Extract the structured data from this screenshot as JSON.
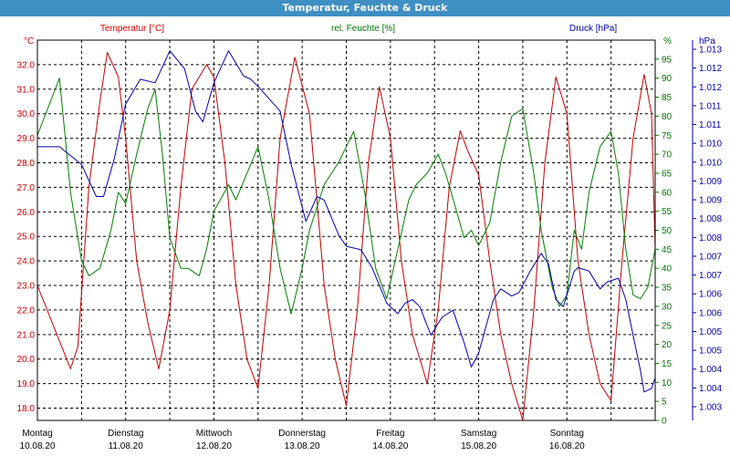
{
  "window": {
    "title": "Temperatur, Feuchte & Druck"
  },
  "colors": {
    "temperature": "#c00000",
    "humidity": "#008000",
    "pressure": "#0000b0",
    "titlebar": "#3f8fc3"
  },
  "chart_data": {
    "type": "line",
    "title": "Temperatur, Feuchte & Druck",
    "grid": true,
    "legend": "top",
    "x_ticks": [
      {
        "day": "Montag",
        "date": "10.08.20"
      },
      {
        "day": "Dienstag",
        "date": "11.08.20"
      },
      {
        "day": "Mittwoch",
        "date": "12.08.20"
      },
      {
        "day": "Donnerstag",
        "date": "13.08.20"
      },
      {
        "day": "Freitag",
        "date": "14.08.20"
      },
      {
        "day": "Samstag",
        "date": "15.08.20"
      },
      {
        "day": "Sonntag",
        "date": "16.08.20"
      }
    ],
    "xlim": [
      "10.08.20 00:00",
      "17.08.20 00:00"
    ],
    "axes": {
      "temperature": {
        "label": "Temperatur [°C]",
        "unit": "°C",
        "ylim": [
          17.5,
          33.0
        ],
        "ticks": [
          "18.0",
          "19.0",
          "20.0",
          "21.0",
          "22.0",
          "23.0",
          "24.0",
          "25.0",
          "26.0",
          "27.0",
          "28.0",
          "29.0",
          "30.0",
          "31.0",
          "32.0"
        ]
      },
      "humidity": {
        "label": "rel. Feuchte [%]",
        "unit": "%",
        "ylim": [
          0,
          100
        ],
        "ticks": [
          "0",
          "5",
          "10",
          "15",
          "20",
          "25",
          "30",
          "35",
          "40",
          "45",
          "50",
          "55",
          "60",
          "65",
          "70",
          "75",
          "80",
          "85",
          "90",
          "95"
        ]
      },
      "pressure": {
        "label": "Druck [hPa]",
        "unit": "hPa",
        "ylim": [
          1002.6,
          1013.3
        ],
        "ticks": [
          "1.003",
          "1.004",
          "1.004",
          "1.005",
          "1.005",
          "1.006",
          "1.006",
          "1.007",
          "1.007",
          "1.008",
          "1.008",
          "1.009",
          "1.009",
          "1.010",
          "1.010",
          "1.011",
          "1.011",
          "1.012",
          "1.012",
          "1.013"
        ]
      }
    },
    "series": [
      {
        "name": "Temperatur [°C]",
        "axis": "temperature",
        "points": [
          [
            "10.08.20 00:00",
            23.0
          ],
          [
            "10.08.20 09:00",
            19.6
          ],
          [
            "10.08.20 11:00",
            20.5
          ],
          [
            "10.08.20 14:00",
            27.0
          ],
          [
            "10.08.20 17:00",
            30.5
          ],
          [
            "10.08.20 19:00",
            32.5
          ],
          [
            "10.08.20 22:00",
            31.5
          ],
          [
            "11.08.20 00:00",
            29.0
          ],
          [
            "11.08.20 03:00",
            24.0
          ],
          [
            "11.08.20 06:00",
            21.5
          ],
          [
            "11.08.20 09:00",
            19.6
          ],
          [
            "11.08.20 12:00",
            22.0
          ],
          [
            "11.08.20 15:00",
            27.0
          ],
          [
            "11.08.20 18:00",
            31.0
          ],
          [
            "11.08.20 22:00",
            32.0
          ],
          [
            "12.08.20 00:00",
            31.5
          ],
          [
            "12.08.20 03:00",
            28.0
          ],
          [
            "12.08.20 06:00",
            23.0
          ],
          [
            "12.08.20 09:00",
            20.0
          ],
          [
            "12.08.20 12:00",
            18.8
          ],
          [
            "12.08.20 15:00",
            23.0
          ],
          [
            "12.08.20 18:00",
            29.0
          ],
          [
            "12.08.20 22:00",
            32.3
          ],
          [
            "13.08.20 02:00",
            30.0
          ],
          [
            "13.08.20 06:00",
            23.0
          ],
          [
            "13.08.20 09:00",
            20.0
          ],
          [
            "13.08.20 12:00",
            18.1
          ],
          [
            "13.08.20 15:00",
            22.0
          ],
          [
            "13.08.20 18:00",
            28.0
          ],
          [
            "13.08.20 21:00",
            31.1
          ],
          [
            "14.08.20 00:00",
            29.0
          ],
          [
            "14.08.20 03:00",
            24.0
          ],
          [
            "14.08.20 06:00",
            21.0
          ],
          [
            "14.08.20 10:00",
            19.0
          ],
          [
            "14.08.20 13:00",
            22.0
          ],
          [
            "14.08.20 16:00",
            27.0
          ],
          [
            "14.08.20 19:00",
            29.3
          ],
          [
            "14.08.20 21:00",
            28.5
          ],
          [
            "15.08.20 00:00",
            27.5
          ],
          [
            "15.08.20 03:00",
            24.0
          ],
          [
            "15.08.20 06:00",
            21.0
          ],
          [
            "15.08.20 09:00",
            19.0
          ],
          [
            "15.08.20 12:00",
            17.5
          ],
          [
            "15.08.20 15:00",
            22.0
          ],
          [
            "15.08.20 18:00",
            28.0
          ],
          [
            "15.08.20 21:00",
            31.5
          ],
          [
            "16.08.20 00:00",
            30.0
          ],
          [
            "16.08.20 03:00",
            24.0
          ],
          [
            "16.08.20 06:00",
            21.0
          ],
          [
            "16.08.20 09:00",
            19.0
          ],
          [
            "16.08.20 12:00",
            18.3
          ],
          [
            "16.08.20 15:00",
            24.0
          ],
          [
            "16.08.20 18:00",
            29.0
          ],
          [
            "16.08.20 21:00",
            31.6
          ],
          [
            "16.08.20 23:00",
            30.0
          ],
          [
            "17.08.20 00:00",
            24.5
          ]
        ]
      },
      {
        "name": "rel. Feuchte [%]",
        "axis": "humidity",
        "points": [
          [
            "10.08.20 00:00",
            75
          ],
          [
            "10.08.20 06:00",
            90
          ],
          [
            "10.08.20 09:00",
            60
          ],
          [
            "10.08.20 12:00",
            42
          ],
          [
            "10.08.20 14:00",
            38
          ],
          [
            "10.08.20 17:00",
            40
          ],
          [
            "10.08.20 20:00",
            50
          ],
          [
            "10.08.20 22:00",
            60
          ],
          [
            "11.08.20 00:00",
            57
          ],
          [
            "11.08.20 03:00",
            70
          ],
          [
            "11.08.20 06:00",
            82
          ],
          [
            "11.08.20 08:00",
            87
          ],
          [
            "11.08.20 10:00",
            70
          ],
          [
            "11.08.20 12:00",
            48
          ],
          [
            "11.08.20 15:00",
            40
          ],
          [
            "11.08.20 17:00",
            40
          ],
          [
            "11.08.20 20:00",
            38
          ],
          [
            "11.08.20 22:00",
            45
          ],
          [
            "12.08.20 00:00",
            55
          ],
          [
            "12.08.20 04:00",
            62
          ],
          [
            "12.08.20 06:00",
            58
          ],
          [
            "12.08.20 09:00",
            65
          ],
          [
            "12.08.20 12:00",
            72
          ],
          [
            "12.08.20 15:00",
            58
          ],
          [
            "12.08.20 18:00",
            40
          ],
          [
            "12.08.20 21:00",
            28
          ],
          [
            "13.08.20 00:00",
            40
          ],
          [
            "13.08.20 02:00",
            50
          ],
          [
            "13.08.20 06:00",
            62
          ],
          [
            "13.08.20 10:00",
            68
          ],
          [
            "13.08.20 14:00",
            76
          ],
          [
            "13.08.20 17:00",
            60
          ],
          [
            "13.08.20 20:00",
            40
          ],
          [
            "13.08.20 23:00",
            32
          ],
          [
            "14.08.20 02:00",
            45
          ],
          [
            "14.08.20 05:00",
            58
          ],
          [
            "14.08.20 07:00",
            62
          ],
          [
            "14.08.20 10:00",
            65
          ],
          [
            "14.08.20 13:00",
            70
          ],
          [
            "14.08.20 15:00",
            65
          ],
          [
            "14.08.20 18:00",
            55
          ],
          [
            "14.08.20 20:00",
            48
          ],
          [
            "14.08.20 22:00",
            50
          ],
          [
            "15.08.20 00:00",
            46
          ],
          [
            "15.08.20 03:00",
            52
          ],
          [
            "15.08.20 06:00",
            68
          ],
          [
            "15.08.20 09:00",
            80
          ],
          [
            "15.08.20 12:00",
            82
          ],
          [
            "15.08.20 15:00",
            65
          ],
          [
            "15.08.20 17:00",
            50
          ],
          [
            "15.08.20 20:00",
            35
          ],
          [
            "15.08.20 22:00",
            30
          ],
          [
            "16.08.20 00:00",
            33
          ],
          [
            "16.08.20 02:00",
            50
          ],
          [
            "16.08.20 04:00",
            45
          ],
          [
            "16.08.20 06:00",
            60
          ],
          [
            "16.08.20 09:00",
            72
          ],
          [
            "16.08.20 12:00",
            76
          ],
          [
            "16.08.20 14:00",
            65
          ],
          [
            "16.08.20 16:00",
            45
          ],
          [
            "16.08.20 18:00",
            33
          ],
          [
            "16.08.20 20:00",
            32
          ],
          [
            "16.08.20 22:00",
            35
          ],
          [
            "17.08.20 00:00",
            45
          ]
        ]
      },
      {
        "name": "Druck [hPa]",
        "axis": "pressure",
        "points": [
          [
            "10.08.20 00:00",
            1010.3
          ],
          [
            "10.08.20 06:00",
            1010.3
          ],
          [
            "10.08.20 12:00",
            1009.8
          ],
          [
            "10.08.20 16:00",
            1008.9
          ],
          [
            "10.08.20 18:00",
            1008.9
          ],
          [
            "10.08.20 21:00",
            1010.0
          ],
          [
            "11.08.20 00:00",
            1011.5
          ],
          [
            "11.08.20 04:00",
            1012.2
          ],
          [
            "11.08.20 08:00",
            1012.1
          ],
          [
            "11.08.20 12:00",
            1013.0
          ],
          [
            "11.08.20 16:00",
            1012.5
          ],
          [
            "11.08.20 19:00",
            1011.3
          ],
          [
            "11.08.20 21:00",
            1011.0
          ],
          [
            "12.08.20 00:00",
            1012.1
          ],
          [
            "12.08.20 04:00",
            1013.0
          ],
          [
            "12.08.20 08:00",
            1012.3
          ],
          [
            "12.08.20 10:00",
            1012.2
          ],
          [
            "12.08.20 12:00",
            1012.0
          ],
          [
            "12.08.20 18:00",
            1011.3
          ],
          [
            "12.08.20 21:00",
            1009.8
          ],
          [
            "13.08.20 01:00",
            1008.2
          ],
          [
            "13.08.20 04:00",
            1008.9
          ],
          [
            "13.08.20 06:00",
            1008.8
          ],
          [
            "13.08.20 10:00",
            1007.8
          ],
          [
            "13.08.20 12:00",
            1007.5
          ],
          [
            "13.08.20 16:00",
            1007.4
          ],
          [
            "13.08.20 19:00",
            1006.9
          ],
          [
            "13.08.20 23:00",
            1005.9
          ],
          [
            "14.08.20 02:00",
            1005.6
          ],
          [
            "14.08.20 04:00",
            1005.9
          ],
          [
            "14.08.20 06:00",
            1006.0
          ],
          [
            "14.08.20 08:00",
            1005.8
          ],
          [
            "14.08.20 11:00",
            1005.0
          ],
          [
            "14.08.20 14:00",
            1005.5
          ],
          [
            "14.08.20 17:00",
            1005.7
          ],
          [
            "14.08.20 20:00",
            1004.8
          ],
          [
            "14.08.20 22:00",
            1004.1
          ],
          [
            "15.08.20 00:00",
            1004.5
          ],
          [
            "15.08.20 04:00",
            1006.0
          ],
          [
            "15.08.20 06:00",
            1006.3
          ],
          [
            "15.08.20 09:00",
            1006.1
          ],
          [
            "15.08.20 11:00",
            1006.2
          ],
          [
            "15.08.20 14:00",
            1006.8
          ],
          [
            "15.08.20 17:00",
            1007.3
          ],
          [
            "15.08.20 19:00",
            1007.0
          ],
          [
            "15.08.20 21:00",
            1006.0
          ],
          [
            "15.08.20 23:00",
            1005.8
          ],
          [
            "16.08.20 02:00",
            1006.8
          ],
          [
            "16.08.20 03:00",
            1006.9
          ],
          [
            "16.08.20 06:00",
            1006.8
          ],
          [
            "16.08.20 09:00",
            1006.3
          ],
          [
            "16.08.20 11:00",
            1006.5
          ],
          [
            "16.08.20 14:00",
            1006.6
          ],
          [
            "16.08.20 16:00",
            1006.0
          ],
          [
            "16.08.20 18:00",
            1005.0
          ],
          [
            "16.08.20 20:00",
            1004.0
          ],
          [
            "16.08.20 21:00",
            1003.4
          ],
          [
            "16.08.20 23:00",
            1003.5
          ],
          [
            "17.08.20 00:00",
            1003.8
          ]
        ]
      }
    ]
  }
}
